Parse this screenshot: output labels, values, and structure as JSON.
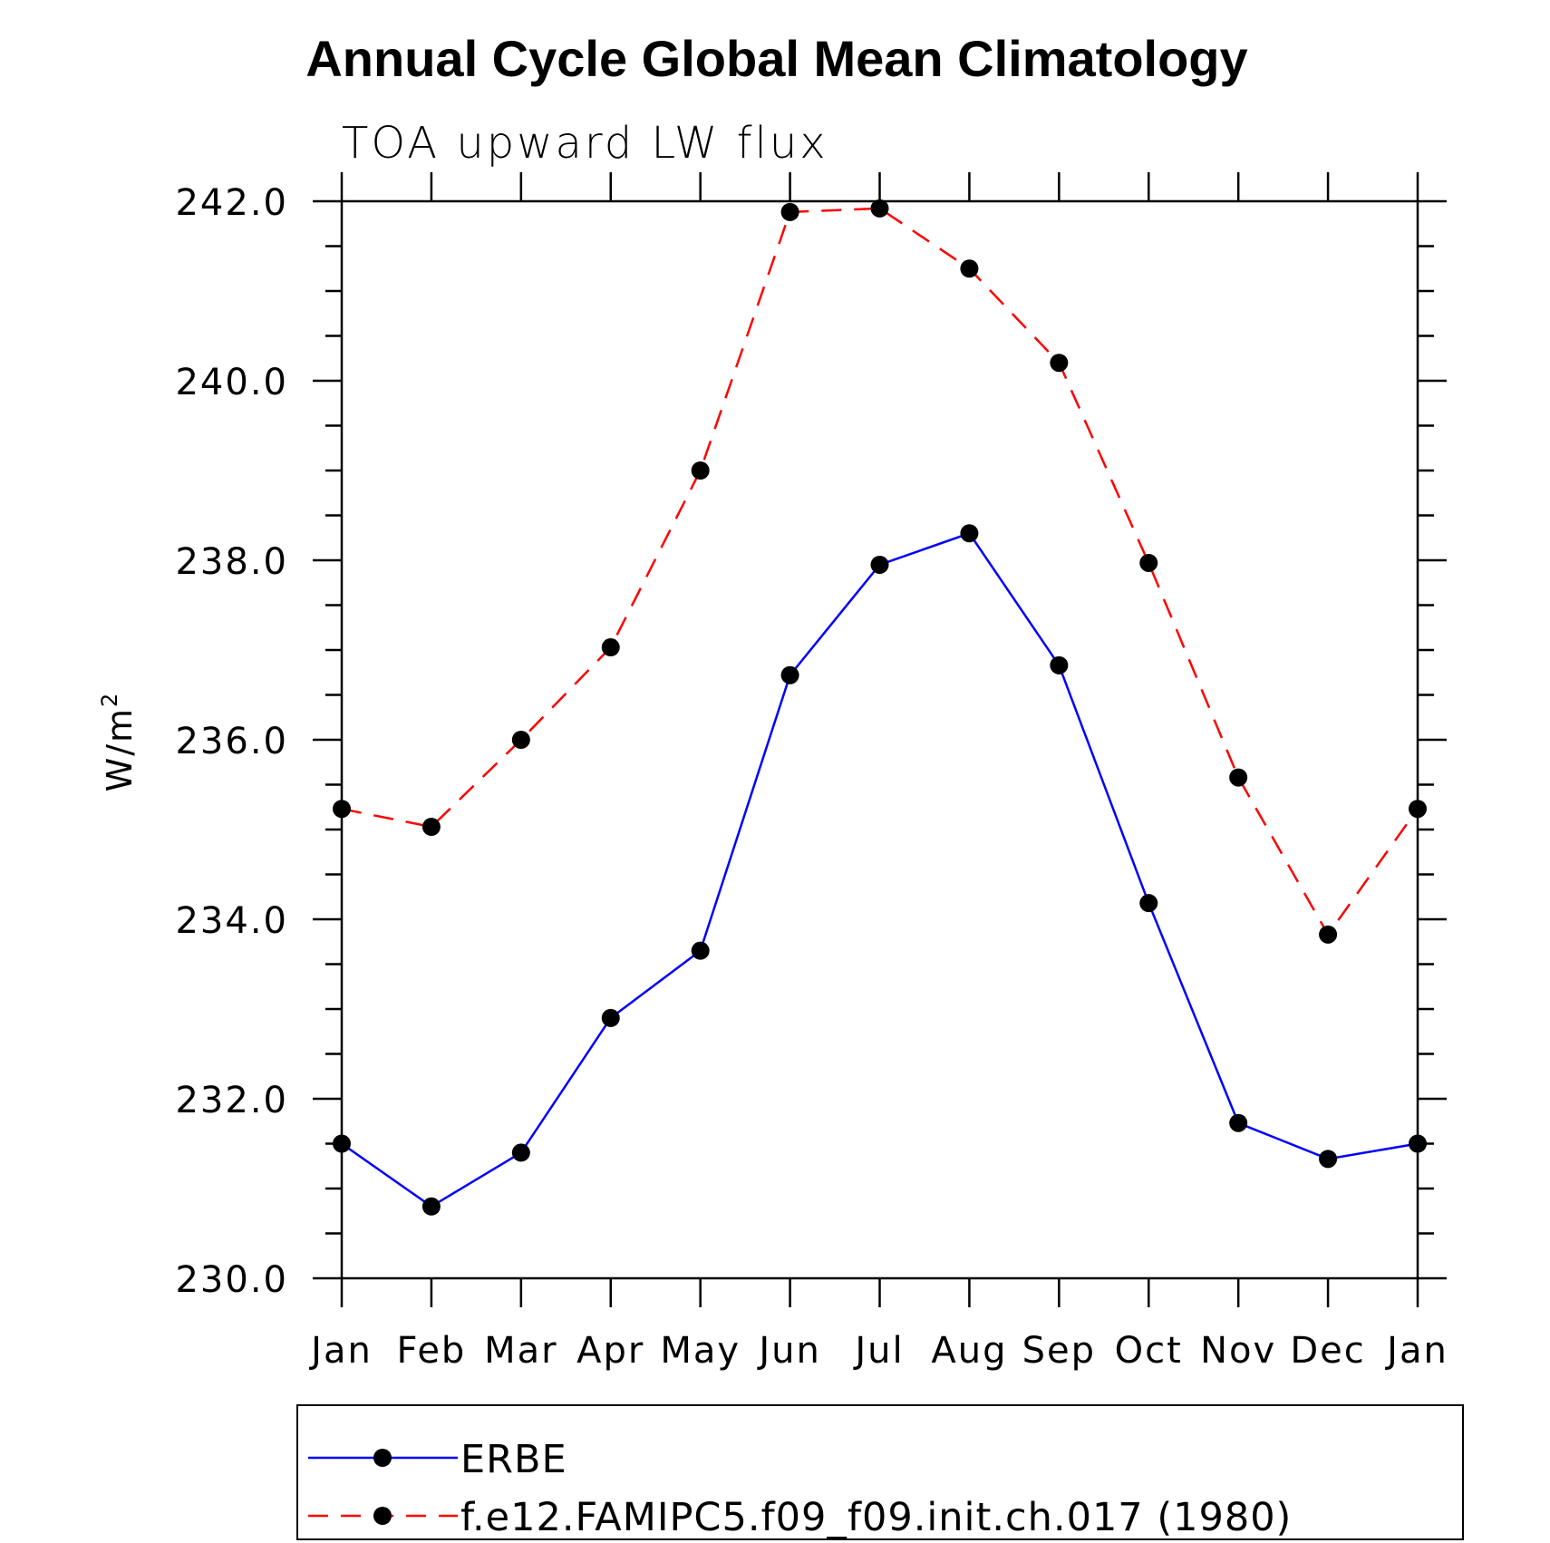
{
  "chart_data": {
    "type": "line",
    "title": "Annual Cycle Global Mean Climatology",
    "subtitle": "TOA upward LW flux",
    "ylabel": "W/m",
    "ylabel_superscript": "2",
    "categories": [
      "Jan",
      "Feb",
      "Mar",
      "Apr",
      "May",
      "Jun",
      "Jul",
      "Aug",
      "Sep",
      "Oct",
      "Nov",
      "Dec",
      "Jan"
    ],
    "ylim": [
      230.0,
      242.0
    ],
    "yticks": [
      "230.0",
      "232.0",
      "234.0",
      "236.0",
      "238.0",
      "240.0",
      "242.0"
    ],
    "legend_position": "bottom",
    "series": [
      {
        "name": "ERBE",
        "color": "#0000ff",
        "dash": "solid",
        "marker": "filled-circle",
        "values": [
          231.5,
          230.8,
          231.4,
          232.9,
          233.65,
          236.72,
          237.95,
          238.3,
          236.83,
          234.18,
          231.73,
          231.33,
          231.5
        ]
      },
      {
        "name": "f.e12.FAMIPC5.f09_f09.init.ch.017 (1980)",
        "color": "#ff0000",
        "dash": "dashed",
        "marker": "filled-circle",
        "values": [
          235.23,
          235.03,
          236.0,
          237.03,
          239.0,
          241.88,
          241.92,
          241.25,
          240.2,
          237.97,
          235.58,
          233.83,
          235.23
        ]
      }
    ]
  }
}
